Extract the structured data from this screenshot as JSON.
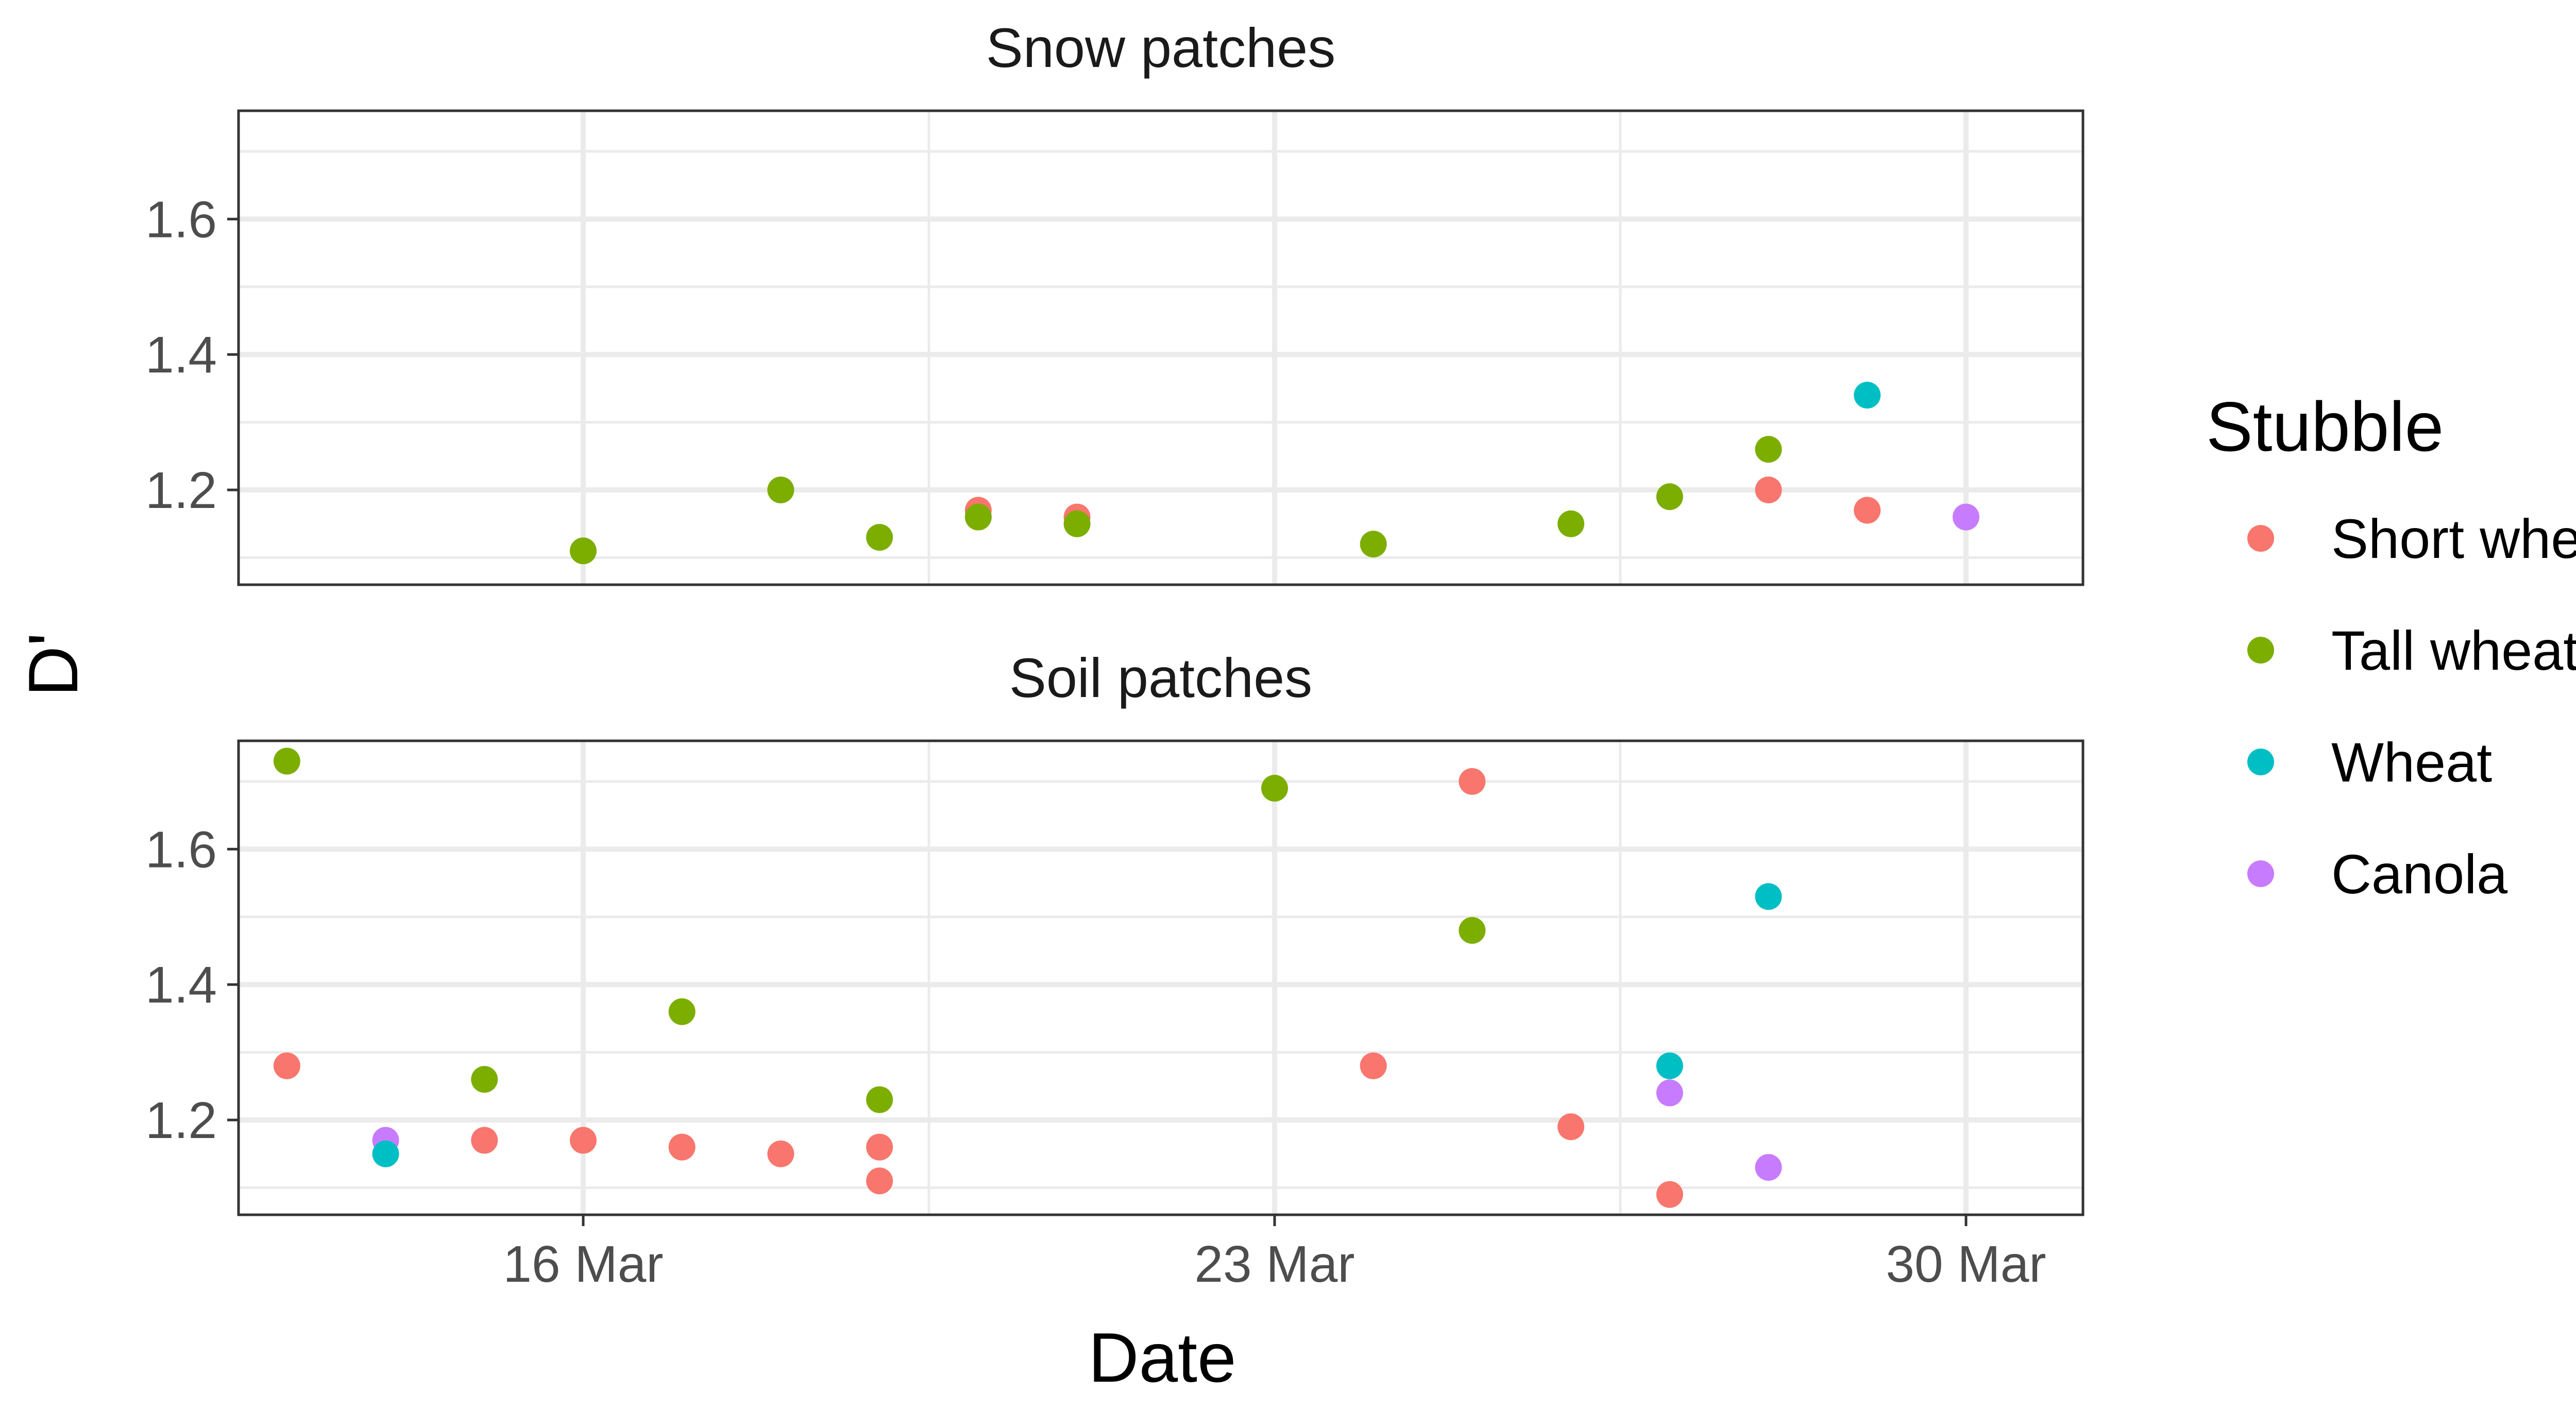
{
  "chart_data": {
    "type": "scatter",
    "xlabel": "Date",
    "ylabel": "D'",
    "x_ticks": [
      "16 Mar",
      "23 Mar",
      "30 Mar"
    ],
    "x_tick_dates": [
      "2021-03-16",
      "2021-03-23",
      "2021-03-30"
    ],
    "xlim": [
      "2021-03-13",
      "2021-03-31"
    ],
    "ylim": [
      1.06,
      1.76
    ],
    "y_ticks": [
      1.2,
      1.4,
      1.6
    ],
    "grid": true,
    "legend": {
      "title": "Stubble",
      "placement": "right",
      "entries": [
        {
          "name": "Short wheat",
          "color": "#F8766D"
        },
        {
          "name": "Tall wheat",
          "color": "#7CAE00"
        },
        {
          "name": "Wheat",
          "color": "#00BFC4"
        },
        {
          "name": "Canola",
          "color": "#C77CFF"
        }
      ]
    },
    "panels": [
      {
        "title": "Snow patches",
        "points": [
          {
            "date": "2021-03-16",
            "y": 1.11,
            "series": "Tall wheat"
          },
          {
            "date": "2021-03-18",
            "y": 1.2,
            "series": "Tall wheat"
          },
          {
            "date": "2021-03-19",
            "y": 1.13,
            "series": "Tall wheat"
          },
          {
            "date": "2021-03-20",
            "y": 1.17,
            "series": "Short wheat"
          },
          {
            "date": "2021-03-20",
            "y": 1.16,
            "series": "Tall wheat"
          },
          {
            "date": "2021-03-21",
            "y": 1.16,
            "series": "Short wheat"
          },
          {
            "date": "2021-03-21",
            "y": 1.15,
            "series": "Tall wheat"
          },
          {
            "date": "2021-03-24",
            "y": 1.12,
            "series": "Tall wheat"
          },
          {
            "date": "2021-03-26",
            "y": 1.15,
            "series": "Tall wheat"
          },
          {
            "date": "2021-03-27",
            "y": 1.19,
            "series": "Tall wheat"
          },
          {
            "date": "2021-03-28",
            "y": 1.26,
            "series": "Tall wheat"
          },
          {
            "date": "2021-03-28",
            "y": 1.2,
            "series": "Short wheat"
          },
          {
            "date": "2021-03-29",
            "y": 1.34,
            "series": "Wheat"
          },
          {
            "date": "2021-03-29",
            "y": 1.17,
            "series": "Short wheat"
          },
          {
            "date": "2021-03-30",
            "y": 1.16,
            "series": "Canola"
          }
        ]
      },
      {
        "title": "Soil patches",
        "points": [
          {
            "date": "2021-03-13",
            "y": 1.73,
            "series": "Tall wheat"
          },
          {
            "date": "2021-03-13",
            "y": 1.28,
            "series": "Short wheat"
          },
          {
            "date": "2021-03-14",
            "y": 1.17,
            "series": "Canola"
          },
          {
            "date": "2021-03-14",
            "y": 1.15,
            "series": "Wheat"
          },
          {
            "date": "2021-03-15",
            "y": 1.26,
            "series": "Tall wheat"
          },
          {
            "date": "2021-03-15",
            "y": 1.17,
            "series": "Short wheat"
          },
          {
            "date": "2021-03-16",
            "y": 1.17,
            "series": "Short wheat"
          },
          {
            "date": "2021-03-17",
            "y": 1.36,
            "series": "Tall wheat"
          },
          {
            "date": "2021-03-17",
            "y": 1.16,
            "series": "Short wheat"
          },
          {
            "date": "2021-03-18",
            "y": 1.15,
            "series": "Short wheat"
          },
          {
            "date": "2021-03-19",
            "y": 1.23,
            "series": "Tall wheat"
          },
          {
            "date": "2021-03-19",
            "y": 1.16,
            "series": "Short wheat"
          },
          {
            "date": "2021-03-19",
            "y": 1.11,
            "series": "Short wheat"
          },
          {
            "date": "2021-03-23",
            "y": 1.69,
            "series": "Tall wheat"
          },
          {
            "date": "2021-03-24",
            "y": 1.28,
            "series": "Short wheat"
          },
          {
            "date": "2021-03-25",
            "y": 1.7,
            "series": "Short wheat"
          },
          {
            "date": "2021-03-25",
            "y": 1.48,
            "series": "Tall wheat"
          },
          {
            "date": "2021-03-26",
            "y": 1.19,
            "series": "Short wheat"
          },
          {
            "date": "2021-03-27",
            "y": 1.28,
            "series": "Wheat"
          },
          {
            "date": "2021-03-27",
            "y": 1.24,
            "series": "Canola"
          },
          {
            "date": "2021-03-27",
            "y": 1.09,
            "series": "Short wheat"
          },
          {
            "date": "2021-03-28",
            "y": 1.53,
            "series": "Wheat"
          },
          {
            "date": "2021-03-28",
            "y": 1.13,
            "series": "Canola"
          }
        ]
      }
    ]
  }
}
